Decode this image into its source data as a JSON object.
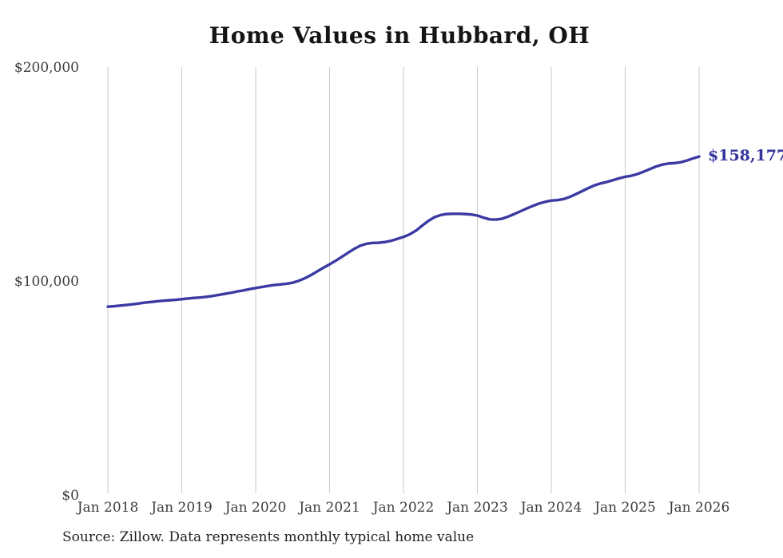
{
  "chart_data": {
    "type": "line",
    "title": "Home Values in Hubbard, OH",
    "source": "Source: Zillow. Data represents monthly typical home value",
    "frequency": "monthly",
    "x_start": "Jan 2018",
    "x_end": "Jan 2026",
    "x_ticks": [
      "Jan 2018",
      "Jan 2019",
      "Jan 2020",
      "Jan 2021",
      "Jan 2022",
      "Jan 2023",
      "Jan 2024",
      "Jan 2025",
      "Jan 2026"
    ],
    "y_ticks": [
      {
        "label": "$0",
        "value": 0
      },
      {
        "label": "$100,000",
        "value": 100000
      },
      {
        "label": "$200,000",
        "value": 200000
      }
    ],
    "ylim": [
      0,
      200000
    ],
    "grid": "vertical-only",
    "end_label": "$158,177",
    "latest_value": 158177,
    "series": [
      {
        "name": "Typical home value",
        "values": [
          88000,
          88200,
          88500,
          88800,
          89100,
          89500,
          89900,
          90200,
          90500,
          90800,
          91000,
          91200,
          91500,
          91800,
          92100,
          92300,
          92600,
          93000,
          93500,
          94000,
          94500,
          95100,
          95600,
          96200,
          96700,
          97200,
          97700,
          98100,
          98400,
          98700,
          99200,
          100100,
          101300,
          102800,
          104500,
          106200,
          107800,
          109500,
          111300,
          113200,
          115000,
          116500,
          117400,
          117800,
          117900,
          118200,
          118800,
          119700,
          120600,
          121800,
          123500,
          125800,
          128000,
          129800,
          130800,
          131300,
          131400,
          131400,
          131300,
          131100,
          130600,
          129600,
          128800,
          128700,
          129100,
          130100,
          131300,
          132600,
          133900,
          135100,
          136200,
          137000,
          137600,
          137800,
          138300,
          139300,
          140600,
          142000,
          143400,
          144700,
          145600,
          146300,
          147100,
          148000,
          148700,
          149200,
          150000,
          151100,
          152300,
          153500,
          154400,
          154900,
          155100,
          155500,
          156300,
          157300,
          158177
        ]
      }
    ],
    "colors": {
      "line": "#3a3aa2",
      "end_label": "#33339b",
      "gridline": "#c9c9c9",
      "tick_label": "#3c3c3c",
      "title": "#141414",
      "source": "#222222",
      "background": "#ffffff"
    }
  }
}
